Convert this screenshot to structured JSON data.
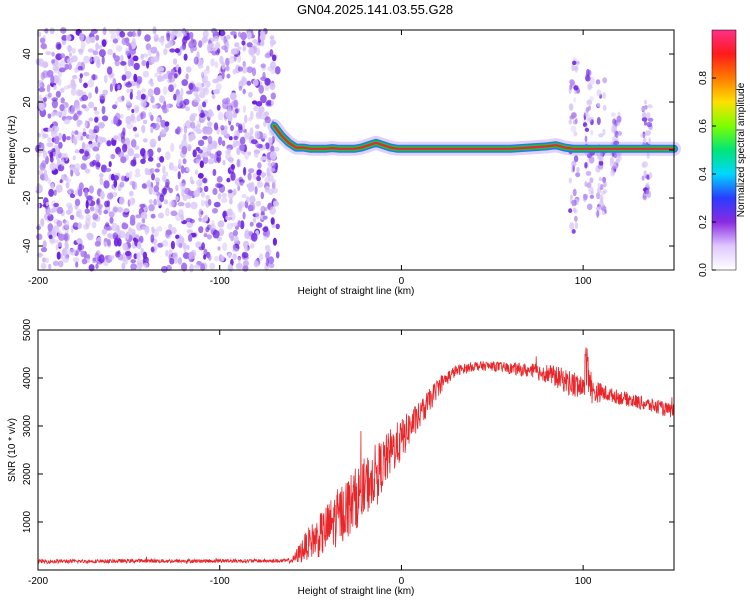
{
  "figure": {
    "title": "GN04.2025.141.03.55.G28"
  },
  "colors": {
    "scatter_light": "#d7c4f7",
    "scatter_mid": "#a878f0",
    "scatter_dark": "#6a1fe0",
    "trace_core": "#e8263a",
    "trace_mid": "#22c42a",
    "trace_outer": "#1d7cf0",
    "snr_line": "#e8262a",
    "colorbar_stops": [
      "#ffffff",
      "#e0c8ff",
      "#8a2be2",
      "#2a3cff",
      "#00d7ff",
      "#00e676",
      "#7cff00",
      "#ffe000",
      "#ff7a00",
      "#ff1a1a",
      "#ff2f8a"
    ]
  },
  "chart_data": [
    {
      "type": "heatmap",
      "title": "",
      "xlabel": "Height of straight line (km)",
      "ylabel": "Frequency (Hz)",
      "xlim": [
        -200,
        150
      ],
      "ylim": [
        -50,
        50
      ],
      "x_ticks": [
        -200,
        -100,
        0,
        100
      ],
      "y_ticks": [
        -40,
        -20,
        0,
        20,
        40
      ],
      "colorbar": {
        "label": "Normalized spectral amplitude",
        "range": [
          0.0,
          1.0
        ],
        "ticks": [
          0.0,
          0.2,
          0.4,
          0.6,
          0.8
        ]
      },
      "noise_region_x": [
        -200,
        -68
      ],
      "trace": {
        "x": [
          -70,
          -66,
          -62,
          -58,
          -54,
          -50,
          -46,
          -42,
          -38,
          -34,
          -30,
          -26,
          -22,
          -18,
          -14,
          -10,
          -6,
          -2,
          2,
          10,
          20,
          40,
          60,
          80,
          85,
          90,
          95,
          100,
          110,
          120,
          150
        ],
        "y": [
          10,
          6,
          3,
          1,
          1,
          0.5,
          0.5,
          0.5,
          0.8,
          0.5,
          0.5,
          0.5,
          1,
          2,
          3,
          2,
          1,
          0.5,
          0.5,
          0.5,
          0.5,
          0.5,
          0.5,
          1.5,
          2,
          1,
          0.5,
          0.5,
          0.5,
          0.5,
          0.5
        ]
      },
      "spread_regions": [
        {
          "x_center": 95,
          "y_extent": [
            -35,
            38
          ]
        },
        {
          "x_center": 103,
          "y_extent": [
            -25,
            35
          ]
        },
        {
          "x_center": 110,
          "y_extent": [
            -35,
            30
          ]
        },
        {
          "x_center": 118,
          "y_extent": [
            -10,
            15
          ]
        },
        {
          "x_center": 135,
          "y_extent": [
            -20,
            20
          ]
        }
      ]
    },
    {
      "type": "line",
      "title": "",
      "xlabel": "Height of straight line (km)",
      "ylabel": "SNR (10 * v/v)",
      "xlim": [
        -200,
        150
      ],
      "ylim": [
        0,
        5000
      ],
      "x_ticks": [
        -200,
        -100,
        0,
        100
      ],
      "y_ticks": [
        1000,
        2000,
        3000,
        4000,
        5000
      ],
      "series": [
        {
          "x": [
            -200,
            -180,
            -160,
            -140,
            -120,
            -100,
            -80,
            -65,
            -60,
            -55,
            -50,
            -45,
            -40,
            -35,
            -30,
            -25,
            -20,
            -15,
            -10,
            -5,
            0,
            5,
            10,
            15,
            20,
            25,
            30,
            35,
            40,
            50,
            60,
            70,
            80,
            90,
            95,
            100,
            102,
            105,
            110,
            115,
            120,
            130,
            140,
            150
          ],
          "y": [
            180,
            180,
            185,
            190,
            185,
            190,
            190,
            190,
            200,
            400,
            600,
            700,
            900,
            1100,
            1300,
            1500,
            1700,
            2000,
            2200,
            2500,
            2700,
            3000,
            3200,
            3500,
            3800,
            4000,
            4150,
            4200,
            4250,
            4250,
            4200,
            4150,
            4100,
            3950,
            3850,
            3800,
            4400,
            3700,
            3700,
            3650,
            3600,
            3500,
            3400,
            3300
          ],
          "noise_amplitude": [
            40,
            40,
            40,
            40,
            40,
            40,
            40,
            40,
            60,
            250,
            350,
            450,
            550,
            600,
            650,
            650,
            650,
            600,
            550,
            500,
            450,
            350,
            300,
            250,
            200,
            150,
            120,
            100,
            100,
            100,
            120,
            150,
            200,
            250,
            300,
            300,
            600,
            250,
            200,
            150,
            150,
            150,
            150,
            150
          ]
        }
      ]
    }
  ]
}
